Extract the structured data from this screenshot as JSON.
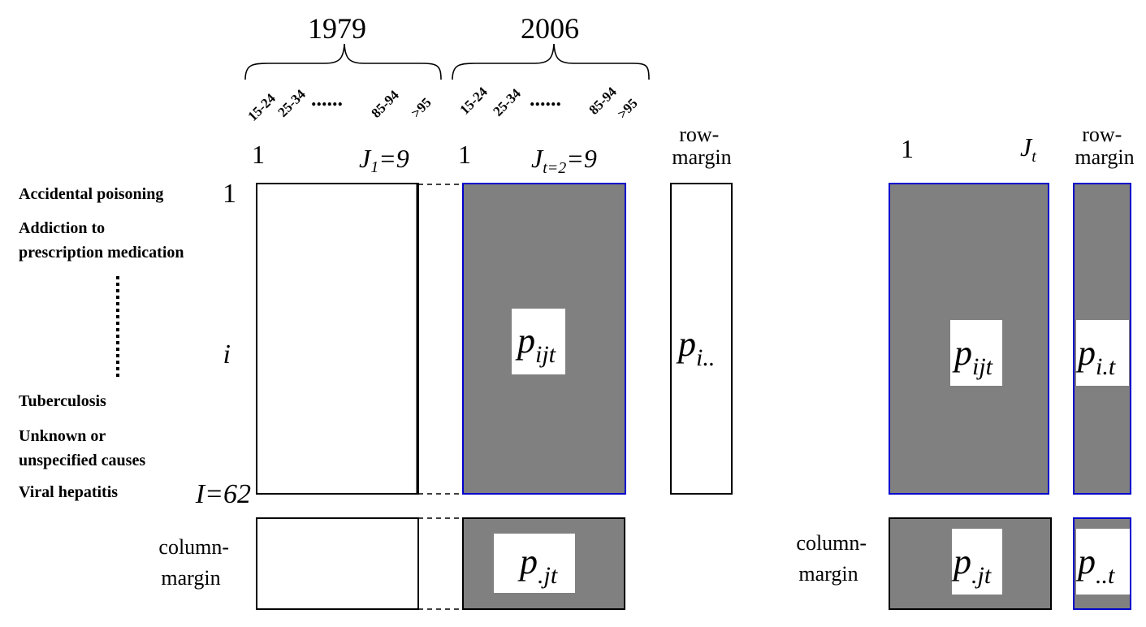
{
  "years": {
    "first": "1979",
    "second": "2006"
  },
  "age_labels": {
    "first": [
      "15-24",
      "25-34",
      "85-94",
      ">95"
    ],
    "second": [
      "15-24",
      "25-34",
      "85-94",
      ">95"
    ],
    "ellipsis": "......"
  },
  "column_index": {
    "first_start": "1",
    "first_end": {
      "base": "J",
      "sub": "1",
      "rest": "=9"
    },
    "second_start": "1",
    "second_end": {
      "base": "J",
      "sub": "t=2",
      "rest": "=9"
    },
    "general_start": "1",
    "general_end": {
      "base": "J",
      "sub": "t"
    }
  },
  "row_index": {
    "first": "1",
    "middle": "i",
    "last": "I=62"
  },
  "causes": [
    [
      "Accidental poisoning"
    ],
    [
      "Addiction to",
      "prescription medication"
    ],
    [
      "Tuberculosis"
    ],
    [
      "Unknown or",
      "unspecified causes"
    ],
    [
      "Viral hepatitis"
    ]
  ],
  "margin_labels": {
    "row_margin": [
      "row-",
      "margin"
    ],
    "row_margin_general": [
      "row-",
      "margin"
    ],
    "column_margin": [
      "column-",
      "margin"
    ],
    "column_margin_general": [
      "column-",
      "margin"
    ]
  },
  "symbols": {
    "p_ijt": {
      "base": "p",
      "sub": "ijt"
    },
    "p_i_dot_dot": {
      "base": "p",
      "sub": "i.."
    },
    "p_ijt_general": {
      "base": "p",
      "sub": "ijt"
    },
    "p_i_dot_t": {
      "base": "p",
      "sub": "i.t"
    },
    "p_dot_jt": {
      "base": "p",
      "sub": ".jt"
    },
    "p_dot_jt_general": {
      "base": "p",
      "sub": ".jt"
    },
    "p_dot_dot_t": {
      "base": "p",
      "sub": "..t"
    }
  },
  "colors": {
    "filled": "#808080",
    "border_blue": "#0000cc",
    "border_black": "#000000",
    "label_box": "#ffffff"
  }
}
